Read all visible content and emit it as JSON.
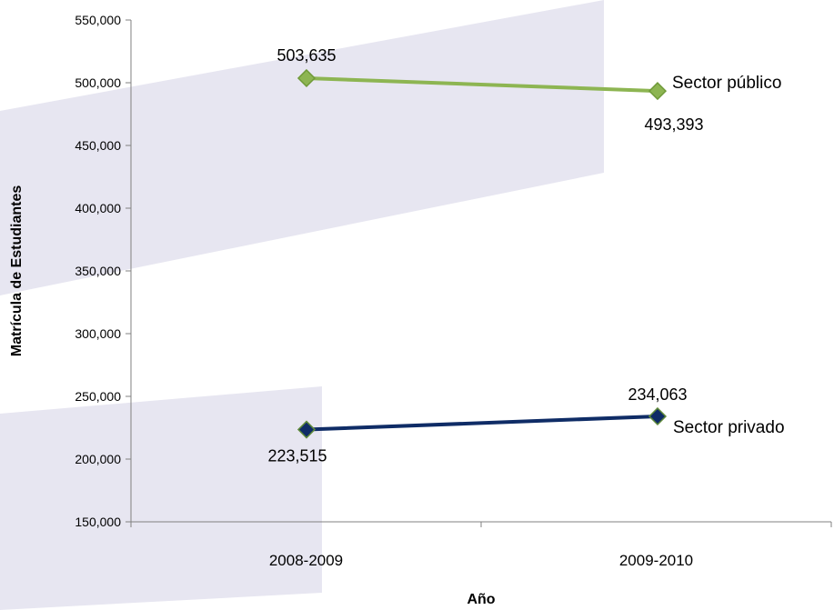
{
  "chart_data": {
    "type": "line",
    "title": "",
    "xlabel": "Año",
    "ylabel": "Matrícula de Estudiantes",
    "categories": [
      "2008-2009",
      "2009-2010"
    ],
    "ylim": [
      150000,
      550000
    ],
    "yticks": [
      150000,
      200000,
      250000,
      300000,
      350000,
      400000,
      450000,
      500000,
      550000
    ],
    "ytick_labels": [
      "150,000",
      "200,000",
      "250,000",
      "300,000",
      "350,000",
      "400,000",
      "450,000",
      "500,000",
      "550,000"
    ],
    "grid": false,
    "series": [
      {
        "name": "Sector público",
        "values": [
          503635,
          493393
        ],
        "labels": [
          "503,635",
          "493,393"
        ],
        "color": "#8db552",
        "marker_edge": "#6f9a38"
      },
      {
        "name": "Sector privado",
        "values": [
          223515,
          234063
        ],
        "labels": [
          "223,515",
          "234,063"
        ],
        "color": "#0f2c66",
        "marker_edge": "#5f8a3a"
      }
    ]
  },
  "colors": {
    "band": "#e7e6f1",
    "axis": "#808080"
  }
}
